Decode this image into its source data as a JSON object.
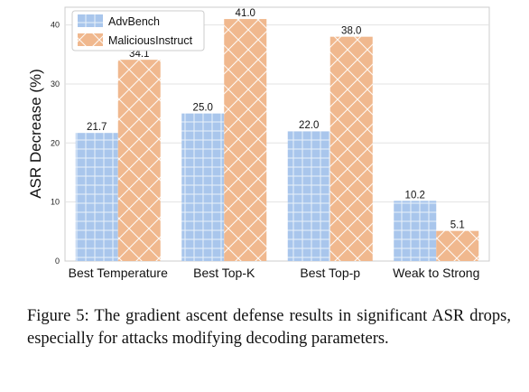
{
  "chart_data": {
    "type": "bar",
    "categories": [
      "Best Temperature",
      "Best Top-K",
      "Best Top-p",
      "Weak to Strong"
    ],
    "series": [
      {
        "name": "AdvBench",
        "values": [
          21.7,
          25.0,
          22.0,
          10.2
        ],
        "color": "#a9c6ec",
        "hatch": "cross-grid"
      },
      {
        "name": "MaliciousInstruct",
        "values": [
          34.1,
          41.0,
          38.0,
          5.1
        ],
        "color": "#f0b88e",
        "hatch": "diagonal-cross"
      }
    ],
    "data_labels": [
      [
        "21.7",
        "25.0",
        "22.0",
        "10.2"
      ],
      [
        "34.1",
        "41.0",
        "38.0",
        "5.1"
      ]
    ],
    "ylabel": "ASR Decrease (%)",
    "yticks": [
      0,
      10,
      20,
      30,
      40
    ],
    "ylim": [
      0,
      43
    ],
    "grid": "horizontal",
    "legend_position": "top-left"
  },
  "caption": "Figure 5: The gradient ascent defense results in significant ASR drops, especially for attacks modifying decoding parameters."
}
